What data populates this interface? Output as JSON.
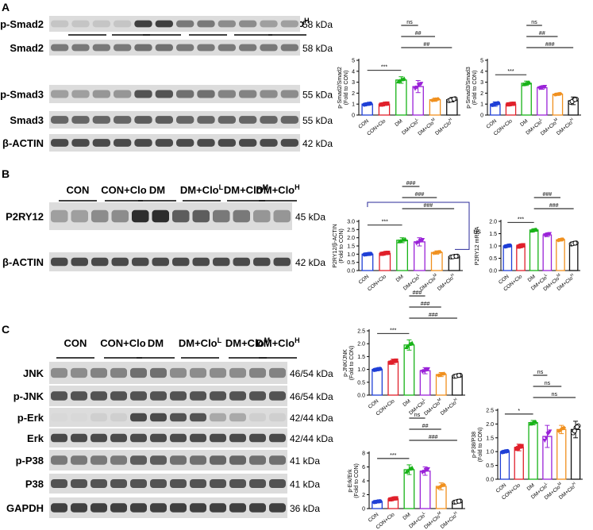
{
  "figure": {
    "panel_letters": [
      "A",
      "B",
      "C"
    ],
    "groups": [
      "CON",
      "CON+Clo",
      "DM",
      "DM+Clo",
      "DM+Clo",
      "DM+Clo"
    ],
    "dose_superscripts": [
      "",
      "",
      "",
      "L",
      "M",
      "H"
    ],
    "x_tick_labels": [
      "CON",
      "CON+Clo",
      "DM",
      "DM+Clo",
      "DM+Clo",
      "DM+Clo"
    ],
    "significance": {
      "three": "***",
      "one": "*",
      "double_hash": "##",
      "triple_hash": "###",
      "ns": "ns"
    },
    "blots": {
      "A": [
        {
          "protein": "p-Smad2",
          "kda": "58 kDa"
        },
        {
          "protein": "Smad2",
          "kda": "58 kDa"
        },
        {
          "protein": "p-Smad3",
          "kda": "55 kDa"
        },
        {
          "protein": "Smad3",
          "kda": "55 kDa"
        },
        {
          "protein": "β-ACTIN",
          "kda": "42 kDa"
        }
      ],
      "B": [
        {
          "protein": "P2RY12",
          "kda": "45 kDa"
        },
        {
          "protein": "β-ACTIN",
          "kda": "42 kDa"
        }
      ],
      "C": [
        {
          "protein": "JNK",
          "kda": "46/54 kDa"
        },
        {
          "protein": "p-JNK",
          "kda": "46/54 kDa"
        },
        {
          "protein": "p-Erk",
          "kda": "42/44 kDa"
        },
        {
          "protein": "Erk",
          "kda": "42/44 kDa"
        },
        {
          "protein": "p-P38",
          "kda": "41 kDa"
        },
        {
          "protein": "P38",
          "kda": "41 kDa"
        },
        {
          "protein": "GAPDH",
          "kda": "36 kDa"
        }
      ]
    }
  },
  "chart_data": [
    {
      "type": "bar",
      "panel": "A",
      "ylabel": "p-Smad2/Smad2",
      "ylabel2": "(Fold to CON)",
      "categories": [
        "CON",
        "CON+Clo",
        "DM",
        "DM+Clo",
        "DM+Clo",
        "DM+Clo"
      ],
      "values": [
        1.0,
        1.0,
        3.2,
        2.6,
        1.4,
        1.4
      ],
      "errors": [
        0.12,
        0.12,
        0.3,
        0.55,
        0.15,
        0.2
      ],
      "ylim": [
        0,
        5
      ],
      "yticks": [
        "0",
        "1",
        "2",
        "3",
        "4",
        "5"
      ],
      "brackets": [
        [
          "***",
          0,
          2
        ],
        [
          "ns",
          2,
          3
        ],
        [
          "##",
          2,
          4
        ],
        [
          "##",
          2,
          5
        ]
      ]
    },
    {
      "type": "bar",
      "panel": "A",
      "ylabel": "p-Smad3/Smad3",
      "ylabel2": "(Fold to CON)",
      "categories": [
        "CON",
        "CON+Clo",
        "DM",
        "DM+Clo",
        "DM+Clo",
        "DM+Clo"
      ],
      "values": [
        1.0,
        1.0,
        2.9,
        2.5,
        1.9,
        1.3
      ],
      "errors": [
        0.2,
        0.08,
        0.2,
        0.15,
        0.1,
        0.35
      ],
      "ylim": [
        0,
        5
      ],
      "yticks": [
        "0",
        "1",
        "2",
        "3",
        "4",
        "5"
      ],
      "brackets": [
        [
          "***",
          0,
          2
        ],
        [
          "ns",
          2,
          3
        ],
        [
          "##",
          2,
          4
        ],
        [
          "###",
          2,
          5
        ]
      ]
    },
    {
      "type": "bar",
      "panel": "B",
      "ylabel": "P2RY12/β-ACTIN",
      "ylabel2": "(Fold to CON)",
      "categories": [
        "CON",
        "CON+Clo",
        "DM",
        "DM+Clo",
        "DM+Clo",
        "DM+Clo"
      ],
      "values": [
        1.0,
        1.05,
        1.85,
        1.75,
        1.1,
        0.85
      ],
      "errors": [
        0.05,
        0.08,
        0.15,
        0.25,
        0.1,
        0.06
      ],
      "ylim": [
        0,
        3
      ],
      "yticks": [
        "0.0",
        "0.5",
        "1.0",
        "1.5",
        "2.0",
        "2.5",
        "3.0"
      ],
      "brackets": [
        [
          "***",
          0,
          2
        ],
        [
          "###",
          2,
          3
        ],
        [
          "###",
          2,
          4
        ],
        [
          "###",
          2,
          5
        ]
      ],
      "side_label": "ns"
    },
    {
      "type": "bar",
      "panel": "B",
      "ylabel": "P2RY12 mRNA",
      "categories": [
        "CON",
        "CON+Clo",
        "DM",
        "DM+Clo",
        "DM+Clo",
        "DM+Clo"
      ],
      "values": [
        1.0,
        1.0,
        1.65,
        1.45,
        1.25,
        1.1
      ],
      "errors": [
        0.05,
        0.07,
        0.05,
        0.07,
        0.05,
        0.05
      ],
      "ylim": [
        0,
        2.0
      ],
      "yticks": [
        "0.0",
        "0.5",
        "1.0",
        "1.5",
        "2.0"
      ],
      "brackets": [
        [
          "***",
          0,
          2
        ],
        [
          "###",
          2,
          4
        ],
        [
          "###",
          2,
          5
        ]
      ]
    },
    {
      "type": "bar",
      "panel": "C",
      "ylabel": "p-JNK/JNK",
      "ylabel2": "(Fold to CON)",
      "categories": [
        "CON",
        "CON+Clo",
        "DM",
        "DM+Clo",
        "DM+Clo",
        "DM+Clo"
      ],
      "values": [
        1.0,
        1.3,
        1.95,
        0.95,
        0.8,
        0.75
      ],
      "errors": [
        0.05,
        0.1,
        0.2,
        0.12,
        0.08,
        0.05
      ],
      "ylim": [
        0,
        2.5
      ],
      "yticks": [
        "0.0",
        "0.5",
        "1.0",
        "1.5",
        "2.0",
        "2.5"
      ],
      "brackets": [
        [
          "***",
          0,
          2
        ],
        [
          "###",
          2,
          3
        ],
        [
          "###",
          2,
          4
        ],
        [
          "###",
          2,
          5
        ]
      ]
    },
    {
      "type": "bar",
      "panel": "C",
      "ylabel": "p-Erk/Erk",
      "ylabel2": "(Fold to CON)",
      "categories": [
        "CON",
        "CON+Clo",
        "DM",
        "DM+Clo",
        "DM+Clo",
        "DM+Clo"
      ],
      "values": [
        1.0,
        1.4,
        5.6,
        5.4,
        3.2,
        1.0
      ],
      "errors": [
        0.15,
        0.2,
        0.7,
        0.6,
        0.5,
        0.2
      ],
      "ylim": [
        0,
        8
      ],
      "yticks": [
        "0",
        "2",
        "4",
        "6",
        "8"
      ],
      "brackets": [
        [
          "***",
          0,
          2
        ],
        [
          "ns",
          2,
          3
        ],
        [
          "##",
          2,
          4
        ],
        [
          "###",
          2,
          5
        ]
      ]
    },
    {
      "type": "bar",
      "panel": "C",
      "ylabel": "p-P38/P38",
      "ylabel2": "(Fold to CON)",
      "categories": [
        "CON",
        "CON+Clo",
        "DM",
        "DM+Clo",
        "DM+Clo",
        "DM+Clo"
      ],
      "values": [
        1.0,
        1.15,
        2.05,
        1.55,
        1.8,
        1.8
      ],
      "errors": [
        0.05,
        0.12,
        0.08,
        0.4,
        0.15,
        0.3
      ],
      "ylim": [
        0,
        2.5
      ],
      "yticks": [
        "0.0",
        "0.5",
        "1.0",
        "1.5",
        "2.0",
        "2.5"
      ],
      "brackets": [
        [
          "*",
          0,
          2
        ],
        [
          "ns",
          2,
          3
        ],
        [
          "ns",
          2,
          4
        ],
        [
          "ns",
          2,
          5
        ]
      ]
    }
  ]
}
